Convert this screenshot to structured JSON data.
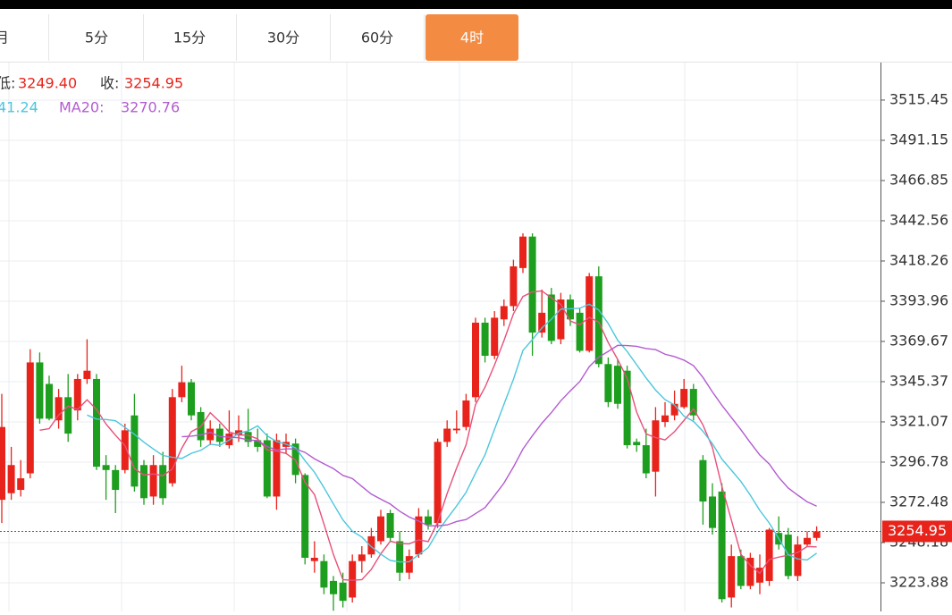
{
  "tabs": [
    "月",
    "5分",
    "15分",
    "30分",
    "60分",
    "4时"
  ],
  "active_tab": 5,
  "chart_data": {
    "type": "candlestick",
    "info": {
      "low_label": "低:",
      "low": "3249.40",
      "close_label": "收:",
      "close": "3254.95",
      "ma10_value": "41.24",
      "ma20_label": "MA20:",
      "ma20_value": "3270.76"
    },
    "ylim": [
      3206.6,
      3538.1
    ],
    "yticks": [
      3515.45,
      3491.15,
      3466.85,
      3442.56,
      3418.26,
      3393.96,
      3369.67,
      3345.37,
      3321.07,
      3296.78,
      3272.48,
      3248.18,
      3223.88
    ],
    "grid": true,
    "up_color": "#e8231b",
    "down_color": "#1e9e1e",
    "ma_colors": [
      "#e8507a",
      "#4cc6dc",
      "#b35bd1"
    ],
    "ma_periods": [
      5,
      10,
      20
    ],
    "open": [
      3274,
      3278,
      3280,
      3290,
      3357,
      3344,
      3322,
      3336,
      3328,
      3347,
      3347,
      3295,
      3292,
      3292,
      3325,
      3295,
      3276,
      3295,
      3284,
      3336,
      3345,
      3327,
      3310,
      3317,
      3307,
      3313,
      3315,
      3310,
      3310,
      3276,
      3306,
      3308,
      3289,
      3237,
      3237,
      3225,
      3224,
      3215,
      3237,
      3241,
      3249,
      3266,
      3249,
      3230,
      3241,
      3264,
      3260,
      3309,
      3316,
      3318,
      3336,
      3381,
      3361,
      3383,
      3391,
      3414,
      3433,
      3375,
      3398,
      3371,
      3395,
      3387,
      3364,
      3409,
      3356,
      3355,
      3352,
      3309,
      3307,
      3291,
      3321,
      3325,
      3330,
      3341,
      3298,
      3276,
      3279,
      3215,
      3240,
      3222,
      3224,
      3225,
      3254,
      3253,
      3228,
      3247,
      3251
    ],
    "high": [
      3338,
      3306,
      3298,
      3365,
      3363,
      3349,
      3341,
      3350,
      3350,
      3371,
      3350,
      3301,
      3295,
      3320,
      3338,
      3298,
      3301,
      3303,
      3341,
      3355,
      3347,
      3330,
      3322,
      3320,
      3328,
      3325,
      3329,
      3317,
      3314,
      3314,
      3314,
      3311,
      3290,
      3249,
      3241,
      3228,
      3230,
      3241,
      3246,
      3257,
      3268,
      3268,
      3255,
      3244,
      3269,
      3268,
      3311,
      3322,
      3328,
      3338,
      3384,
      3384,
      3388,
      3395,
      3419,
      3435,
      3435,
      3401,
      3402,
      3399,
      3398,
      3390,
      3411,
      3415,
      3360,
      3359,
      3355,
      3311,
      3317,
      3330,
      3333,
      3340,
      3347,
      3344,
      3301,
      3284,
      3284,
      3247,
      3244,
      3242,
      3241,
      3257,
      3264,
      3257,
      3252,
      3255,
      3258
    ],
    "low": [
      3260,
      3274,
      3276,
      3287,
      3320,
      3322,
      3317,
      3309,
      3322,
      3344,
      3292,
      3274,
      3266,
      3290,
      3279,
      3271,
      3271,
      3271,
      3282,
      3333,
      3322,
      3306,
      3307,
      3306,
      3305,
      3309,
      3306,
      3303,
      3275,
      3268,
      3302,
      3284,
      3235,
      3230,
      3217,
      3207,
      3209,
      3212,
      3230,
      3239,
      3247,
      3249,
      3225,
      3226,
      3239,
      3256,
      3257,
      3306,
      3314,
      3316,
      3333,
      3357,
      3359,
      3379,
      3388,
      3411,
      3361,
      3372,
      3368,
      3368,
      3379,
      3363,
      3363,
      3354,
      3330,
      3329,
      3305,
      3303,
      3287,
      3276,
      3318,
      3322,
      3329,
      3322,
      3259,
      3253,
      3212,
      3209,
      3220,
      3220,
      3217,
      3222,
      3244,
      3226,
      3225,
      3246,
      3249.4
    ],
    "close": [
      3318,
      3295,
      3287,
      3357,
      3323,
      3323,
      3336,
      3314,
      3347,
      3352,
      3294,
      3292,
      3280,
      3316,
      3282,
      3275,
      3295,
      3275,
      3336,
      3345,
      3325,
      3310,
      3317,
      3309,
      3314,
      3316,
      3309,
      3306,
      3276,
      3310,
      3309,
      3289,
      3239,
      3239,
      3221,
      3217,
      3213,
      3237,
      3241,
      3252,
      3264,
      3251,
      3230,
      3240,
      3264,
      3259,
      3309,
      3317,
      3317,
      3334,
      3381,
      3361,
      3384,
      3391,
      3415,
      3433,
      3375,
      3387,
      3370,
      3395,
      3383,
      3364,
      3409,
      3356,
      3333,
      3332,
      3307,
      3307,
      3290,
      3322,
      3325,
      3332,
      3341,
      3325,
      3273,
      3257,
      3214,
      3240,
      3222,
      3239,
      3233,
      3256,
      3247,
      3228,
      3247,
      3251,
      3254.95
    ]
  }
}
